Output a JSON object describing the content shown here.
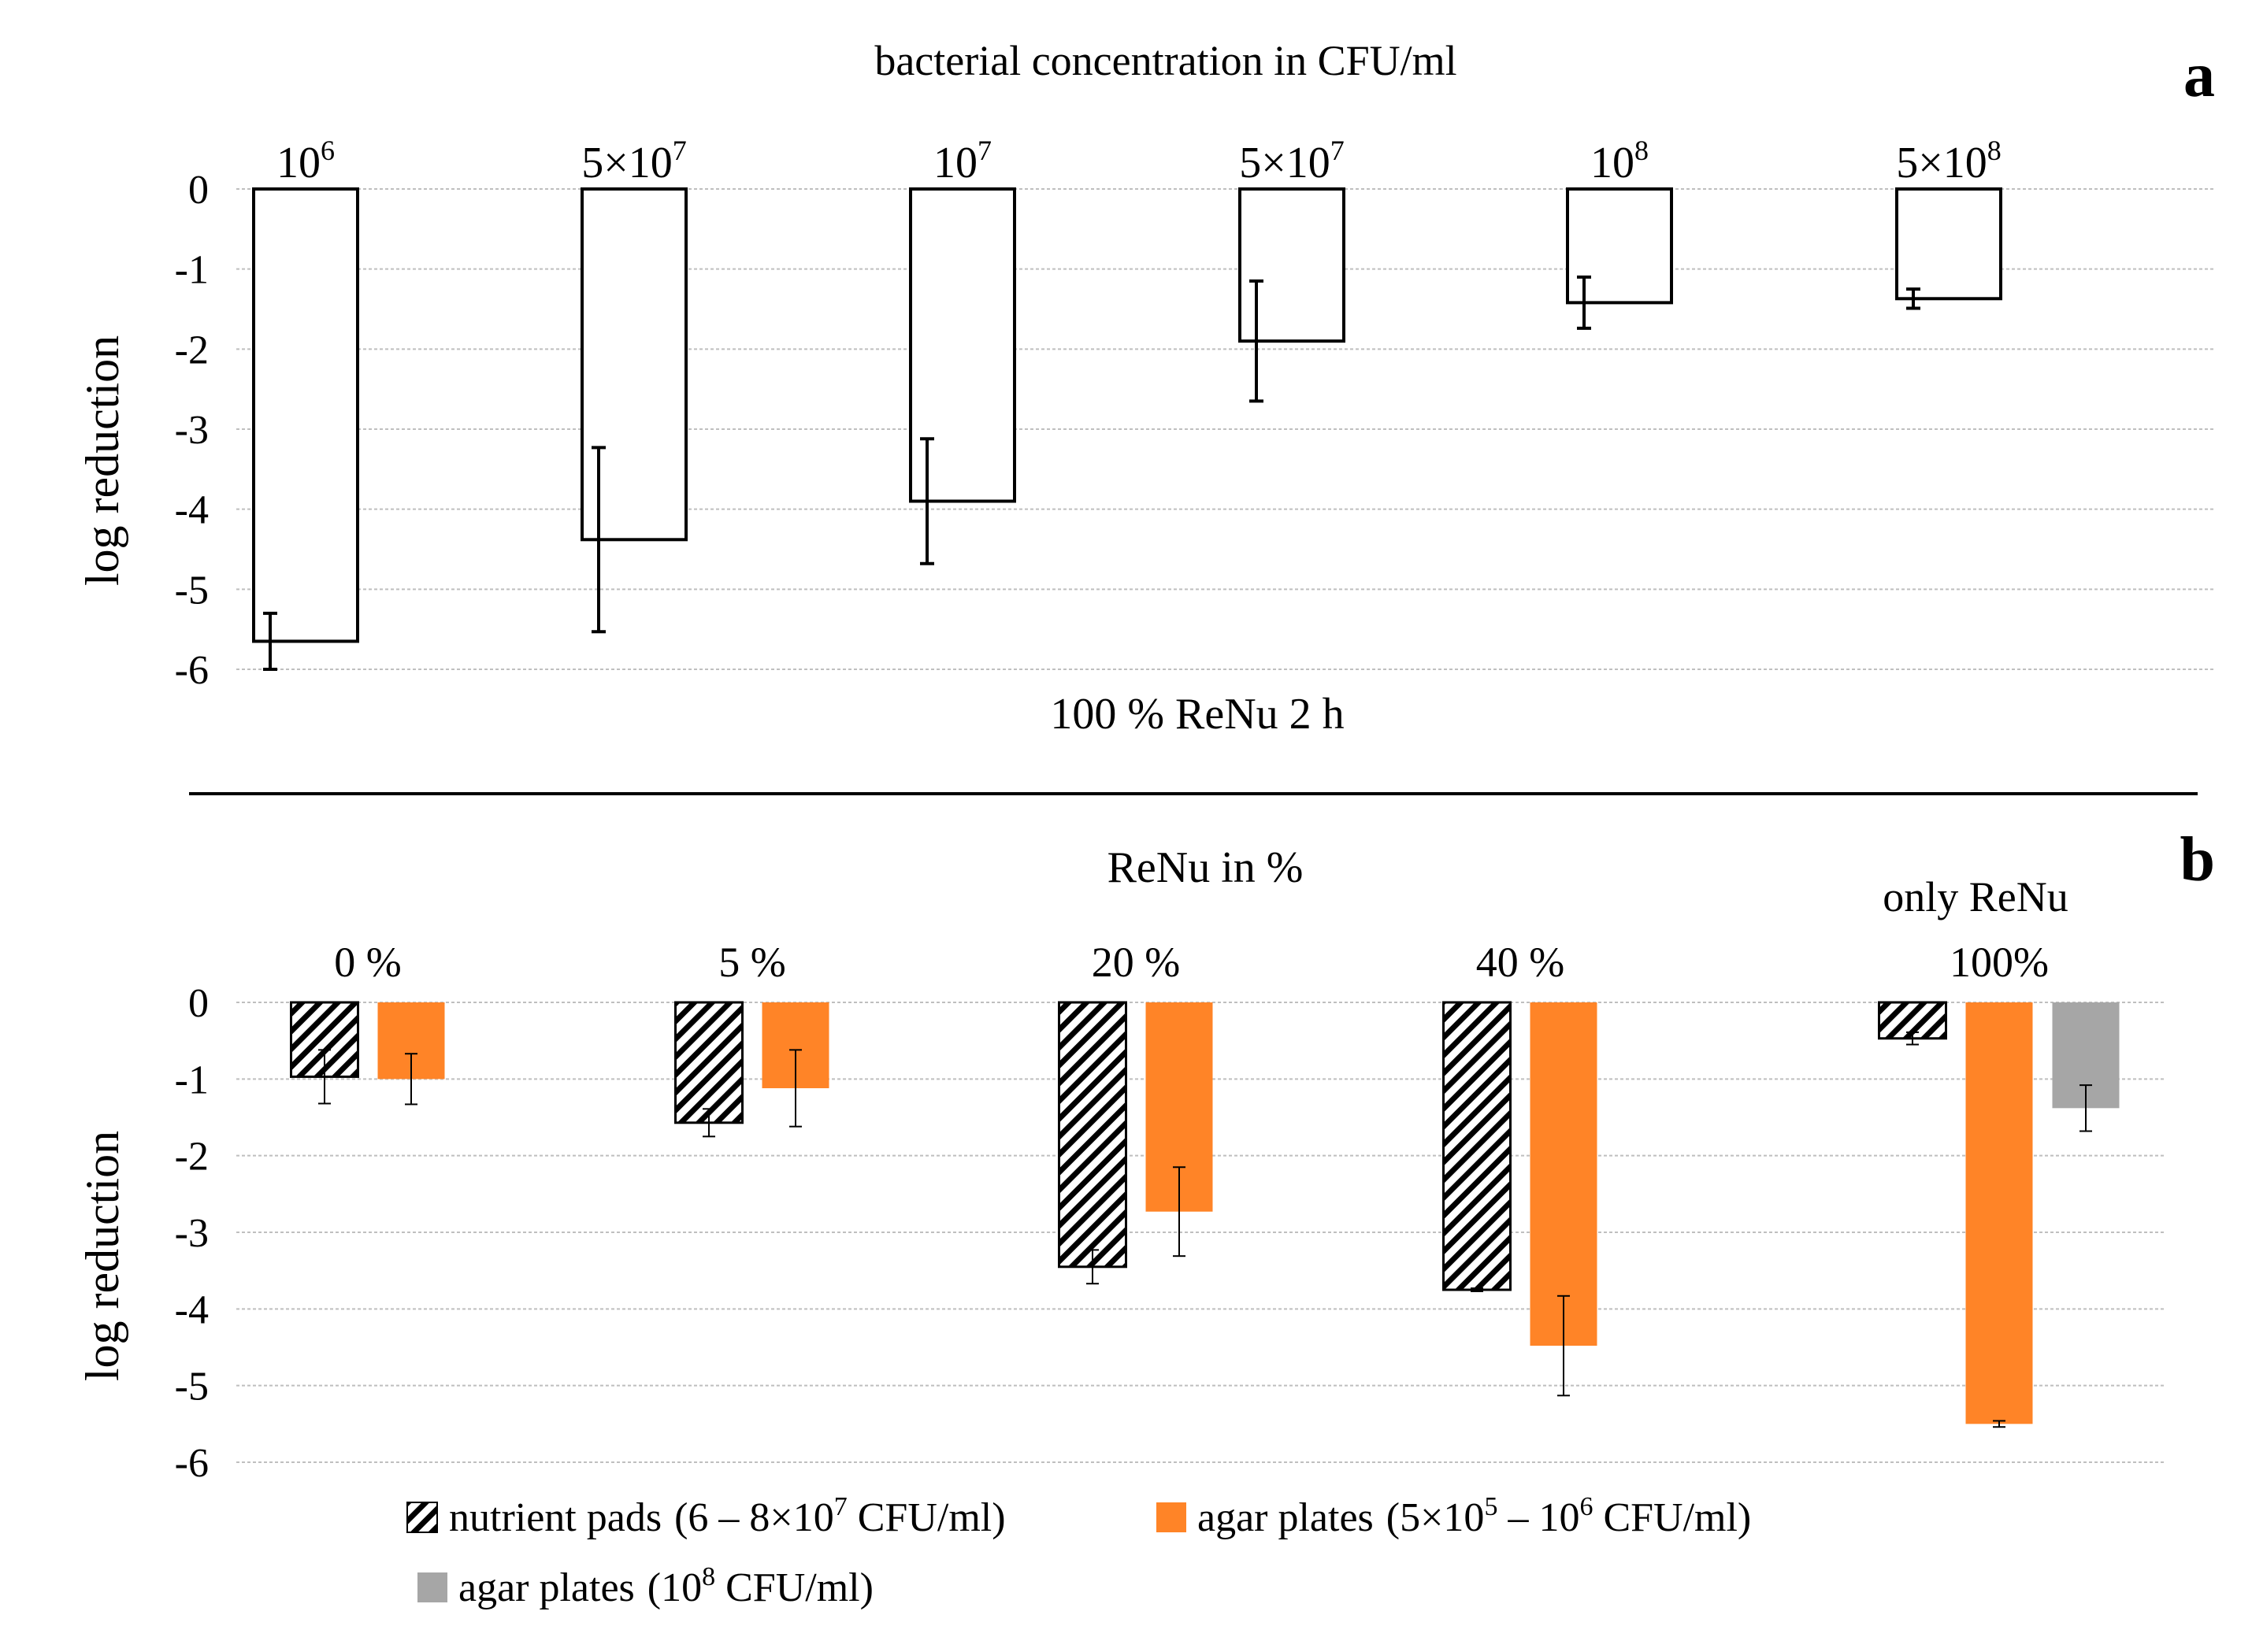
{
  "chart_data": [
    {
      "panel": "a",
      "type": "bar",
      "title": "bacterial concentration  in CFU/ml",
      "xlabel": "100 % ReNu 2 h",
      "ylabel": "log reduction",
      "ylim": [
        -6,
        0
      ],
      "yticks": [
        "0",
        "-1",
        "-2",
        "-3",
        "-4",
        "-5",
        "-6"
      ],
      "grid": true,
      "categories": [
        {
          "base": "10",
          "sup": "6"
        },
        {
          "base": "5×10",
          "sup": "7"
        },
        {
          "base": "10",
          "sup": "7"
        },
        {
          "base": "5×10",
          "sup": "7"
        },
        {
          "base": "10",
          "sup": "8"
        },
        {
          "base": "5×10",
          "sup": "8"
        }
      ],
      "series": [
        {
          "name": "100 % ReNu 2 h",
          "style": "outline",
          "values": [
            -5.65,
            -4.38,
            -3.9,
            -1.9,
            -1.42,
            -1.37
          ],
          "errors": [
            0.35,
            1.15,
            0.78,
            0.75,
            0.32,
            0.12
          ]
        }
      ]
    },
    {
      "panel": "b",
      "type": "bar",
      "title": "ReNu in %",
      "xlabel": "",
      "ylabel": "log reduction",
      "ylim": [
        -6,
        0
      ],
      "yticks": [
        "0",
        "-1",
        "-2",
        "-3",
        "-4",
        "-5",
        "-6"
      ],
      "grid": true,
      "categories": [
        "0 %",
        "5 %",
        "20 %",
        "40 %",
        "100%"
      ],
      "group_note": "only ReNu",
      "series": [
        {
          "name": "nutrient pads",
          "detail": "(6 – 8×10",
          "detail_sup": "7",
          "detail_tail": " CFU/ml)",
          "style": "hatch",
          "values": [
            -0.97,
            -1.57,
            -3.45,
            -3.75,
            -0.47
          ],
          "errors": [
            0.35,
            0.18,
            0.22,
            0.02,
            0.08
          ]
        },
        {
          "name": "agar plates",
          "detail": "(5×10",
          "detail_sup": "5",
          "detail_mid": " – 10",
          "detail_sup2": "6",
          "detail_tail": " CFU/ml)",
          "style": "solid",
          "color": "#FF8427",
          "values": [
            -1.0,
            -1.12,
            -2.73,
            -4.48,
            -5.5
          ],
          "errors": [
            0.33,
            0.5,
            0.58,
            0.65,
            0.04
          ]
        },
        {
          "name": "agar plates",
          "detail": "(10",
          "detail_sup": "8",
          "detail_tail": " CFU/ml)",
          "style": "solid",
          "color": "#A6A6A6",
          "values": [
            null,
            null,
            null,
            null,
            -1.38
          ],
          "errors": [
            null,
            null,
            null,
            null,
            0.3
          ]
        }
      ]
    }
  ],
  "panel_labels": {
    "a": "a",
    "b": "b"
  },
  "colors": {
    "grid": "#BFBFBF",
    "text": "#000000",
    "orange": "#FF8427",
    "gray": "#A6A6A6"
  }
}
